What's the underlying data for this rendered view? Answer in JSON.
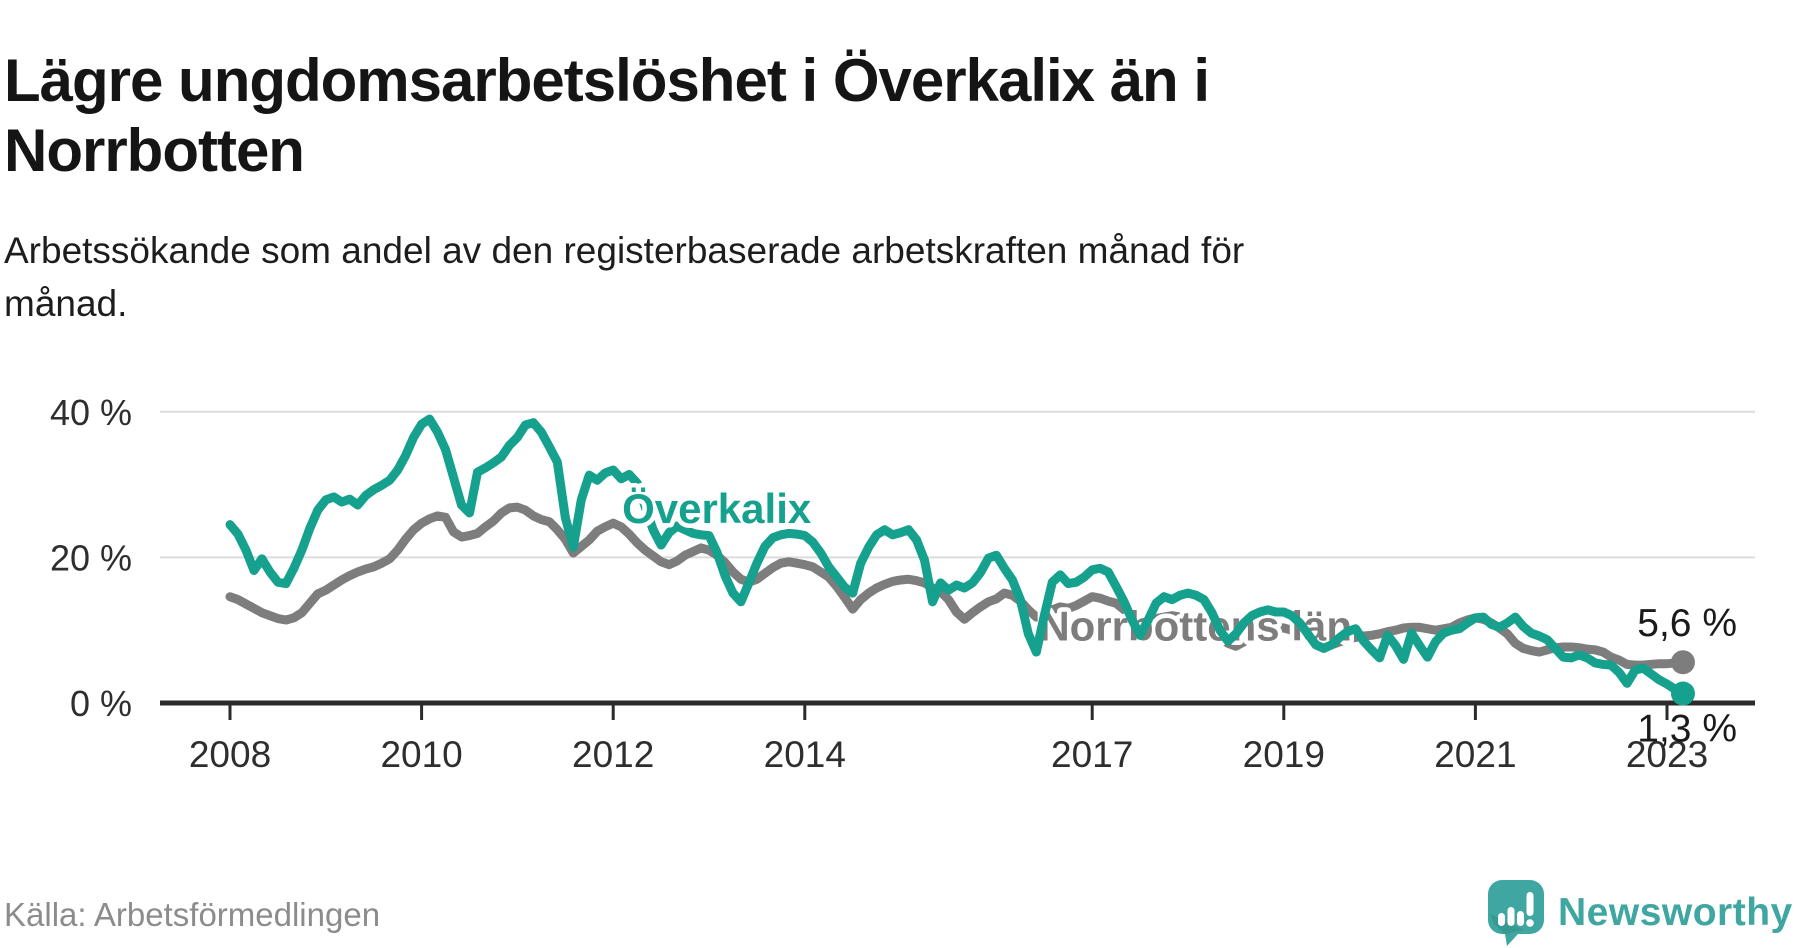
{
  "page": {
    "title": "Lägre ungdomsarbetslöshet i Överkalix än i\nNorrbotten",
    "subtitle": "Arbetssökande som andel av den registerbaserade arbetskraften månad för\nmånad.",
    "source": "Källa: Arbetsförmedlingen",
    "brand": "Newsworthy"
  },
  "colors": {
    "accent_teal": "#16a18e",
    "line_gray": "#7d7d7d",
    "logo_teal": "#3fa6a1",
    "logo_teal_dark": "#2f8f89",
    "grid": "#dcdcdc",
    "axis": "#2b2b2b",
    "axis_text": "#2e2e2e",
    "annotation_text": "#1a1a1a",
    "title_text": "#151515",
    "source_text": "#8c8c8c"
  },
  "chart_data": {
    "type": "line",
    "title": "Lägre ungdomsarbetslöshet i Överkalix än i Norrbotten",
    "xlabel": "",
    "ylabel": "%",
    "grid": true,
    "legend_position": "inline-labels",
    "x_axis": {
      "unit": "year",
      "start_year": 2008,
      "start_month": 1,
      "points_per_year": 12,
      "ticks": [
        2008,
        2010,
        2012,
        2014,
        2017,
        2019,
        2021,
        2023
      ]
    },
    "y_axis": {
      "unit": "%",
      "range": [
        0,
        42
      ],
      "ticks": [
        {
          "value": 40,
          "label": "40 %"
        },
        {
          "value": 20,
          "label": "20 %"
        },
        {
          "value": 0,
          "label": "0 %"
        }
      ]
    },
    "series": [
      {
        "name": "Överkalix",
        "color": "#16a18e",
        "end_label": "1,3 %",
        "end_label_position": "below",
        "label_anchor": {
          "year": 2013.08,
          "pct": 24.7
        },
        "values": [
          24.5,
          23.2,
          21.0,
          18.2,
          19.8,
          18.0,
          16.6,
          16.4,
          18.5,
          21.0,
          24.0,
          26.5,
          27.9,
          28.3,
          27.6,
          28.0,
          27.2,
          28.5,
          29.3,
          29.9,
          30.6,
          32.0,
          34.0,
          36.5,
          38.3,
          39.0,
          37.2,
          34.8,
          31.0,
          27.2,
          26.1,
          31.7,
          32.3,
          33.0,
          33.8,
          35.4,
          36.5,
          38.2,
          38.5,
          37.2,
          35.2,
          33.1,
          25.5,
          21.4,
          27.9,
          31.3,
          30.6,
          31.6,
          32.0,
          30.8,
          31.4,
          30.2,
          27.0,
          23.8,
          21.7,
          23.4,
          24.3,
          23.8,
          23.3,
          23.1,
          23.0,
          20.7,
          17.5,
          15.1,
          13.9,
          16.5,
          19.2,
          21.5,
          22.7,
          23.1,
          23.3,
          23.2,
          23.0,
          22.1,
          20.6,
          18.7,
          17.3,
          15.9,
          15.1,
          19.2,
          21.4,
          23.1,
          23.8,
          23.1,
          23.4,
          23.8,
          22.4,
          19.6,
          13.9,
          16.5,
          15.5,
          16.2,
          15.8,
          16.5,
          17.9,
          19.9,
          20.3,
          18.5,
          16.9,
          14.2,
          9.5,
          7.0,
          12.0,
          16.6,
          17.6,
          16.4,
          16.6,
          17.3,
          18.3,
          18.5,
          18.0,
          16.0,
          13.9,
          11.4,
          9.3,
          11.4,
          13.7,
          14.6,
          14.2,
          14.8,
          15.1,
          14.8,
          14.2,
          12.4,
          10.0,
          8.5,
          9.5,
          11.0,
          12.0,
          12.5,
          12.8,
          12.5,
          12.5,
          12.0,
          11.0,
          9.5,
          8.0,
          7.5,
          8.0,
          9.0,
          9.8,
          10.2,
          8.5,
          7.3,
          6.2,
          9.3,
          7.9,
          6.0,
          9.6,
          7.9,
          6.3,
          8.4,
          9.6,
          10.0,
          10.2,
          11.0,
          11.7,
          11.8,
          10.8,
          10.4,
          11.0,
          11.8,
          10.5,
          9.6,
          9.2,
          8.7,
          7.5,
          6.3,
          6.2,
          6.6,
          6.2,
          5.5,
          5.3,
          5.2,
          4.2,
          2.7,
          4.5,
          4.8,
          4.0,
          3.2,
          2.6,
          1.9,
          1.3
        ]
      },
      {
        "name": "Norrbottens län",
        "color": "#7d7d7d",
        "end_label": "5,6 %",
        "end_label_position": "above",
        "label_anchor": {
          "year": 2018.08,
          "pct": 8.6
        },
        "values": [
          14.6,
          14.2,
          13.6,
          13.0,
          12.4,
          12.0,
          11.6,
          11.4,
          11.7,
          12.4,
          13.7,
          15.0,
          15.5,
          16.2,
          16.9,
          17.5,
          18.0,
          18.4,
          18.7,
          19.2,
          19.8,
          21.0,
          22.5,
          23.8,
          24.7,
          25.3,
          25.7,
          25.5,
          23.5,
          22.8,
          23.0,
          23.3,
          24.2,
          25.0,
          26.1,
          26.8,
          26.9,
          26.5,
          25.7,
          25.2,
          24.9,
          23.8,
          22.5,
          20.6,
          21.5,
          22.4,
          23.6,
          24.2,
          24.7,
          24.2,
          23.2,
          22.0,
          21.0,
          20.2,
          19.4,
          19.0,
          19.5,
          20.3,
          20.8,
          21.3,
          21.0,
          20.3,
          19.3,
          18.0,
          17.0,
          16.6,
          17.0,
          17.8,
          18.6,
          19.2,
          19.4,
          19.2,
          19.0,
          18.7,
          18.0,
          17.3,
          16.0,
          14.5,
          12.9,
          14.2,
          15.1,
          15.8,
          16.3,
          16.7,
          16.9,
          17.0,
          16.8,
          16.5,
          15.8,
          15.3,
          14.2,
          12.5,
          11.5,
          12.4,
          13.2,
          13.9,
          14.3,
          15.1,
          14.8,
          14.0,
          12.8,
          11.8,
          12.2,
          12.8,
          13.2,
          13.0,
          13.4,
          14.0,
          14.6,
          14.4,
          14.0,
          13.7,
          12.8,
          11.8,
          11.0,
          11.2,
          11.6,
          11.8,
          12.0,
          11.8,
          11.6,
          11.2,
          10.8,
          10.2,
          9.3,
          8.2,
          7.8,
          8.4,
          9.2,
          9.8,
          10.2,
          10.4,
          10.3,
          10.0,
          9.7,
          9.2,
          8.6,
          8.2,
          8.0,
          8.4,
          8.8,
          9.0,
          9.2,
          9.3,
          9.5,
          9.8,
          10.0,
          10.3,
          10.4,
          10.4,
          10.2,
          10.0,
          10.2,
          10.4,
          11.0,
          11.4,
          11.7,
          11.5,
          11.0,
          10.3,
          9.5,
          8.2,
          7.5,
          7.2,
          7.0,
          7.3,
          7.6,
          7.7,
          7.7,
          7.6,
          7.4,
          7.3,
          7.0,
          6.3,
          5.9,
          5.3,
          5.2,
          5.2,
          5.3,
          5.4,
          5.4,
          5.5,
          5.6
        ]
      }
    ]
  }
}
